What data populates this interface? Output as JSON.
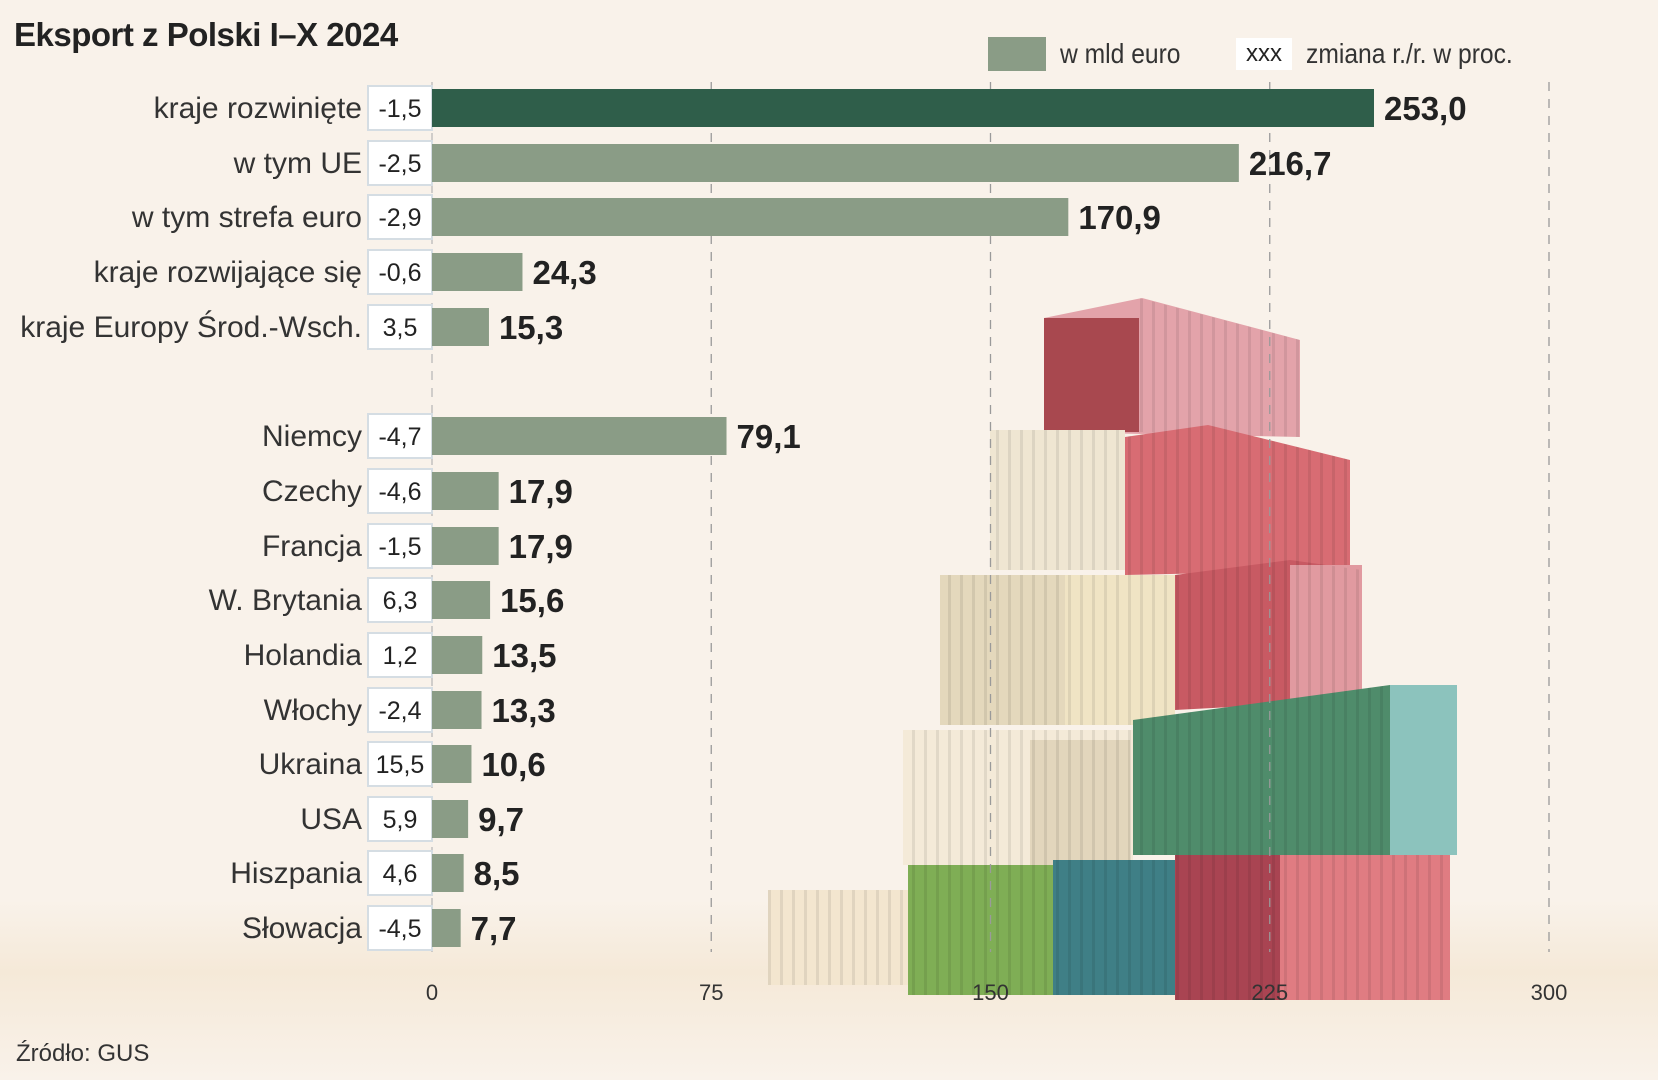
{
  "title": "Eksport z Polski I–X 2024",
  "legend": {
    "bar_label": "w mld euro",
    "box_sample": "xxx",
    "box_label": "zmiana r./r. w proc."
  },
  "source": "Źródło: GUS",
  "colors": {
    "background": "#f9f2ea",
    "bar_default": "#8a9c86",
    "bar_highlight": "#2f5e4a",
    "text": "#222222",
    "pct_box": "#ffffff"
  },
  "chart_data": {
    "type": "bar",
    "orientation": "horizontal",
    "title": "Eksport z Polski I–X 2024",
    "xlabel": "",
    "ylabel": "",
    "xlim": [
      0,
      300
    ],
    "xticks": [
      0,
      75,
      150,
      225,
      300
    ],
    "xtick_labels": [
      "0",
      "75",
      "150",
      "225",
      "300"
    ],
    "grid": "vertical dashed",
    "legend_position": "top-right",
    "series": [
      {
        "name": "w mld euro",
        "unit": "mld euro"
      },
      {
        "name": "zmiana r./r. w proc.",
        "unit": "%"
      }
    ],
    "groups": [
      {
        "name": "regions",
        "categories": [
          "kraje rozwinięte",
          "w tym UE",
          "w tym strefa euro",
          "kraje rozwijające się",
          "kraje Europy Środ.-Wsch."
        ],
        "values": [
          253.0,
          216.7,
          170.9,
          24.3,
          15.3
        ],
        "value_labels": [
          "253,0",
          "216,7",
          "170,9",
          "24,3",
          "15,3"
        ],
        "change_pct": [
          -1.5,
          -2.5,
          -2.9,
          -0.6,
          3.5
        ],
        "change_labels": [
          "-1,5",
          "-2,5",
          "-2,9",
          "-0,6",
          "3,5"
        ],
        "highlight": [
          true,
          false,
          false,
          false,
          false
        ]
      },
      {
        "name": "countries",
        "categories": [
          "Niemcy",
          "Czechy",
          "Francja",
          "W. Brytania",
          "Holandia",
          "Włochy",
          "Ukraina",
          "USA",
          "Hiszpania",
          "Słowacja"
        ],
        "values": [
          79.1,
          17.9,
          17.9,
          15.6,
          13.5,
          13.3,
          10.6,
          9.7,
          8.5,
          7.7
        ],
        "value_labels": [
          "79,1",
          "17,9",
          "17,9",
          "15,6",
          "13,5",
          "13,3",
          "10,6",
          "9,7",
          "8,5",
          "7,7"
        ],
        "change_pct": [
          -4.7,
          -4.6,
          -1.5,
          6.3,
          1.2,
          -2.4,
          15.5,
          5.9,
          4.6,
          -4.5
        ],
        "change_labels": [
          "-4,7",
          "-4,6",
          "-1,5",
          "6,3",
          "1,2",
          "-2,4",
          "15,5",
          "5,9",
          "4,6",
          "-4,5"
        ],
        "highlight": [
          false,
          false,
          false,
          false,
          false,
          false,
          false,
          false,
          false,
          false
        ]
      }
    ]
  },
  "illustration": "stacked-shipping-containers"
}
